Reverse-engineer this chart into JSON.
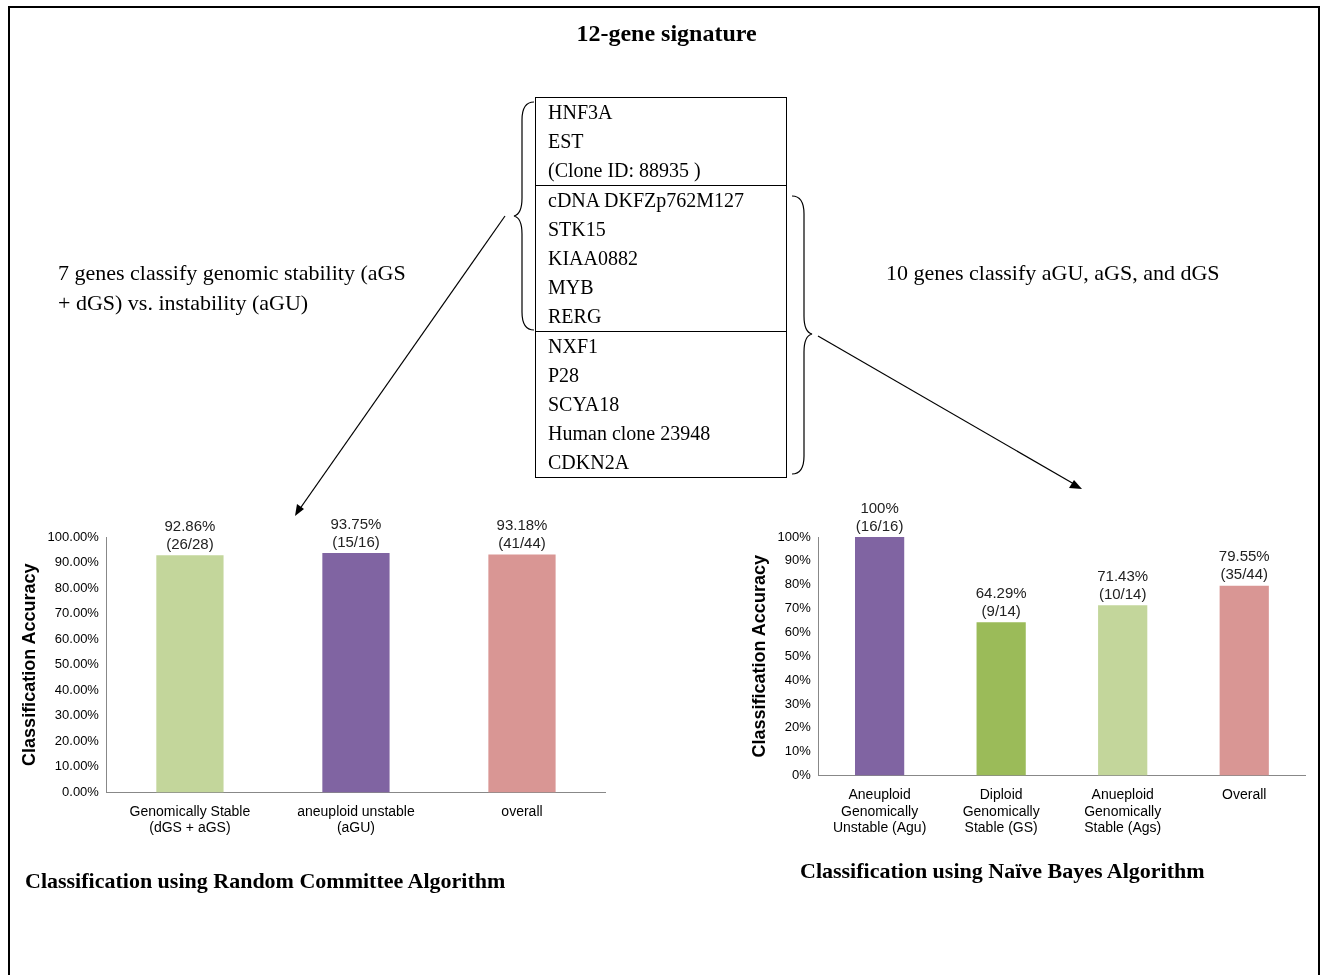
{
  "chart_data": [
    {
      "type": "bar",
      "title": "Classification using Random Committee Algorithm",
      "ylabel": "Classification Accuracy",
      "categories": [
        "Genomically Stable\n(dGS + aGS)",
        "aneuploid unstable\n(aGU)",
        "overall"
      ],
      "values": [
        92.86,
        93.75,
        93.18
      ],
      "colors": [
        "#c3d69b",
        "#8064a2",
        "#d99694"
      ],
      "value_labels": [
        "92.86%\n(26/28)",
        "93.75%\n(15/16)",
        "93.18%\n(41/44)"
      ],
      "ylim": [
        0,
        100
      ],
      "yticks": [
        {
          "value": 0,
          "label": "0.00%"
        },
        {
          "value": 10,
          "label": "10.00%"
        },
        {
          "value": 20,
          "label": "20.00%"
        },
        {
          "value": 30,
          "label": "30.00%"
        },
        {
          "value": 40,
          "label": "40.00%"
        },
        {
          "value": 50,
          "label": "50.00%"
        },
        {
          "value": 60,
          "label": "60.00%"
        },
        {
          "value": 70,
          "label": "70.00%"
        },
        {
          "value": 80,
          "label": "80.00%"
        },
        {
          "value": 90,
          "label": "90.00%"
        },
        {
          "value": 100,
          "label": "100.00%"
        }
      ],
      "grid": false,
      "legend": false
    },
    {
      "type": "bar",
      "title": "Classification using Naïve Bayes Algorithm",
      "ylabel": "Classification Accuracy",
      "categories": [
        "Aneuploid\nGenomically\nUnstable (Agu)",
        "Diploid\nGenomically\nStable (GS)",
        "Anueploid\nGenomically\nStable (Ags)",
        "Overall"
      ],
      "values": [
        100,
        64.29,
        71.43,
        79.55
      ],
      "colors": [
        "#8064a2",
        "#9bbb59",
        "#c3d69b",
        "#d99694"
      ],
      "value_labels": [
        "100%\n(16/16)",
        "64.29%\n(9/14)",
        "71.43%\n(10/14)",
        "79.55%\n(35/44)"
      ],
      "ylim": [
        0,
        100
      ],
      "yticks": [
        {
          "value": 0,
          "label": "0%"
        },
        {
          "value": 10,
          "label": "10%"
        },
        {
          "value": 20,
          "label": "20%"
        },
        {
          "value": 30,
          "label": "30%"
        },
        {
          "value": 40,
          "label": "40%"
        },
        {
          "value": 50,
          "label": "50%"
        },
        {
          "value": 60,
          "label": "60%"
        },
        {
          "value": 70,
          "label": "70%"
        },
        {
          "value": 80,
          "label": "80%"
        },
        {
          "value": 90,
          "label": "90%"
        },
        {
          "value": 100,
          "label": "100%"
        }
      ],
      "grid": false,
      "legend": false
    },
    {
      "type": "other",
      "title": "12-gene signature",
      "annotations": [
        "HNF3A",
        "EST",
        "(Clone ID: 88935 )",
        "cDNA DKFZp762M127",
        "STK15",
        "KIAA0882",
        "MYB",
        "RERG",
        "NXF1",
        "P28",
        "SCYA18",
        "Human clone 23948",
        "CDKN2A",
        "7 genes classify genomic stability (aGS + dGS) vs. instability (aGU)",
        "10 genes classify aGU, aGS, and dGS"
      ]
    }
  ]
}
